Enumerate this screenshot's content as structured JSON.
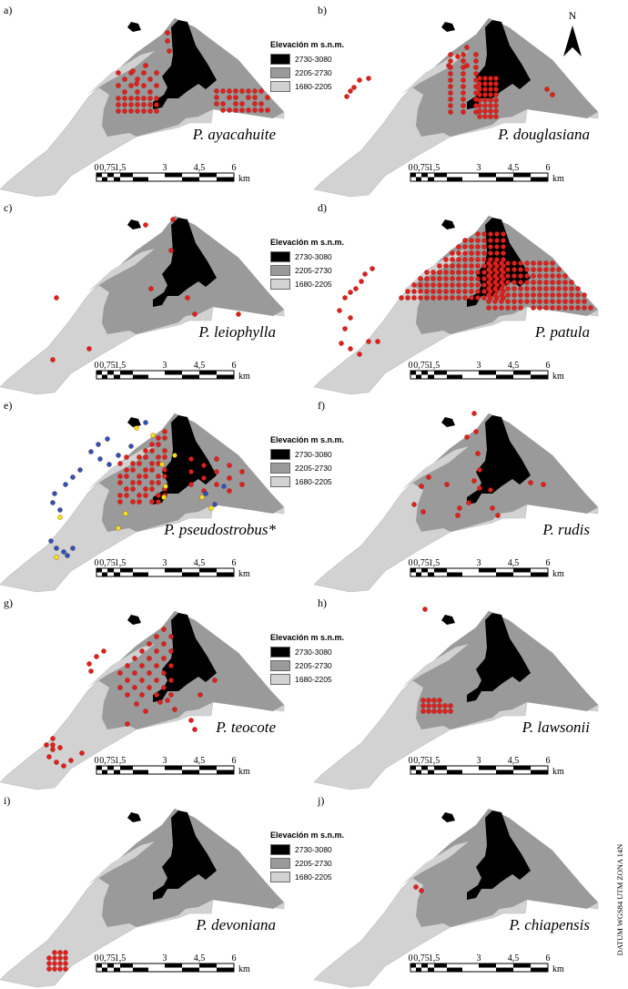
{
  "legend": {
    "title": "Elevación m s.n.m.",
    "classes": [
      {
        "label": "2730-3080",
        "color": "#000000"
      },
      {
        "label": "2205-2730",
        "color": "#9a9a9a"
      },
      {
        "label": "1680-2205",
        "color": "#d2d2d2"
      }
    ]
  },
  "scale_bar": {
    "ticks": [
      "0",
      "0,75",
      "1,5",
      "3",
      "4,5",
      "6"
    ],
    "unit": "km"
  },
  "north_arrow": {
    "label": "N"
  },
  "datum": "DATUM WGS84 UTM ZONA 14N",
  "point_colors": {
    "red": "#e0201b",
    "blue": "#2a55b8",
    "yellow": "#f2e21c"
  },
  "panels": [
    {
      "letter": "a)",
      "species": "P. ayacahuite",
      "legend": true
    },
    {
      "letter": "b)",
      "species": "P. douglasiana",
      "legend": false
    },
    {
      "letter": "c)",
      "species": "P. leiophylla",
      "legend": true
    },
    {
      "letter": "d)",
      "species": "P. patula",
      "legend": false
    },
    {
      "letter": "e)",
      "species": "P. pseudostrobus*",
      "legend": true
    },
    {
      "letter": "f)",
      "species": "P. rudis",
      "legend": false
    },
    {
      "letter": "g)",
      "species": "P. teocote",
      "legend": true
    },
    {
      "letter": "h)",
      "species": "P. lawsonii",
      "legend": false
    },
    {
      "letter": "i)",
      "species": "P. devoniana",
      "legend": true
    },
    {
      "letter": "j)",
      "species": "P. chiapensis",
      "legend": false
    }
  ]
}
